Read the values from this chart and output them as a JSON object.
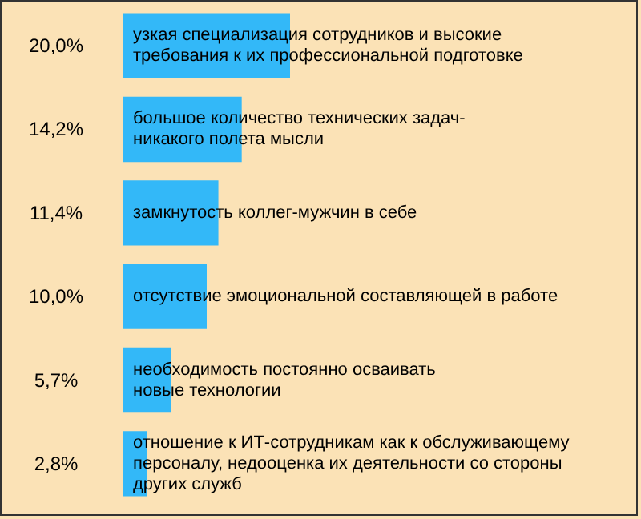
{
  "chart_data": {
    "type": "bar",
    "orientation": "horizontal",
    "categories": [
      "узкая специализация сотрудников и высокие\nтребования к их профессиональной подготовке",
      "большое количество технических задач-\nникакого полета мысли",
      "замкнутость коллег-мужчин в себе",
      "отсутствие эмоциональной составляющей в работе",
      "необходимость постоянно осваивать\nновые технологии",
      "отношение к ИТ-сотрудникам как к обслуживающему\nперсоналу, недооценка их деятельности со стороны\nдругих служб"
    ],
    "values": [
      20.0,
      14.2,
      11.4,
      10.0,
      5.7,
      2.8
    ],
    "value_labels": [
      "20,0%",
      "14,2%",
      "11,4%",
      "10,0%",
      "5,7%",
      "2,8%"
    ],
    "color": "#33b8f8"
  }
}
